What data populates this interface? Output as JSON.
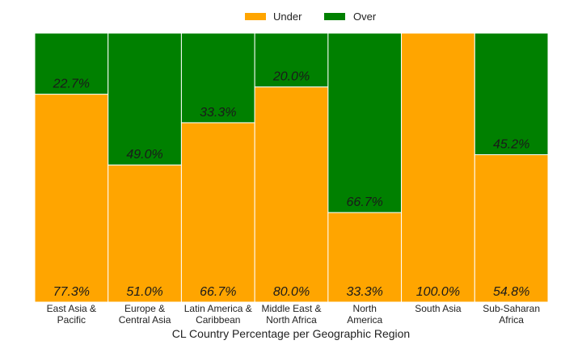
{
  "chart_data": {
    "type": "bar",
    "stacked": true,
    "normalized": true,
    "xlabel": "CL Country Percentage per Geographic Region",
    "ylabel": "",
    "ylim": [
      0,
      100
    ],
    "grid": false,
    "legend_position": "top-center",
    "categories": [
      [
        "East Asia &",
        "Pacific"
      ],
      [
        "Europe &",
        "Central Asia"
      ],
      [
        "Latin America &",
        "Caribbean"
      ],
      [
        "Middle East &",
        "North Africa"
      ],
      [
        "North",
        "America"
      ],
      [
        "South Asia"
      ],
      [
        "Sub-Saharan",
        "Africa"
      ]
    ],
    "series": [
      {
        "name": "Under",
        "color": "#ffa500",
        "values": [
          77.3,
          51.0,
          66.7,
          80.0,
          33.3,
          100.0,
          54.8
        ],
        "labels": [
          "77.3%",
          "51.0%",
          "66.7%",
          "80.0%",
          "33.3%",
          "100.0%",
          "54.8%"
        ]
      },
      {
        "name": "Over",
        "color": "#008000",
        "values": [
          22.7,
          49.0,
          33.3,
          20.0,
          66.7,
          0.0,
          45.2
        ],
        "labels": [
          "22.7%",
          "49.0%",
          "33.3%",
          "20.0%",
          "66.7%",
          "",
          "45.2%"
        ]
      }
    ]
  }
}
